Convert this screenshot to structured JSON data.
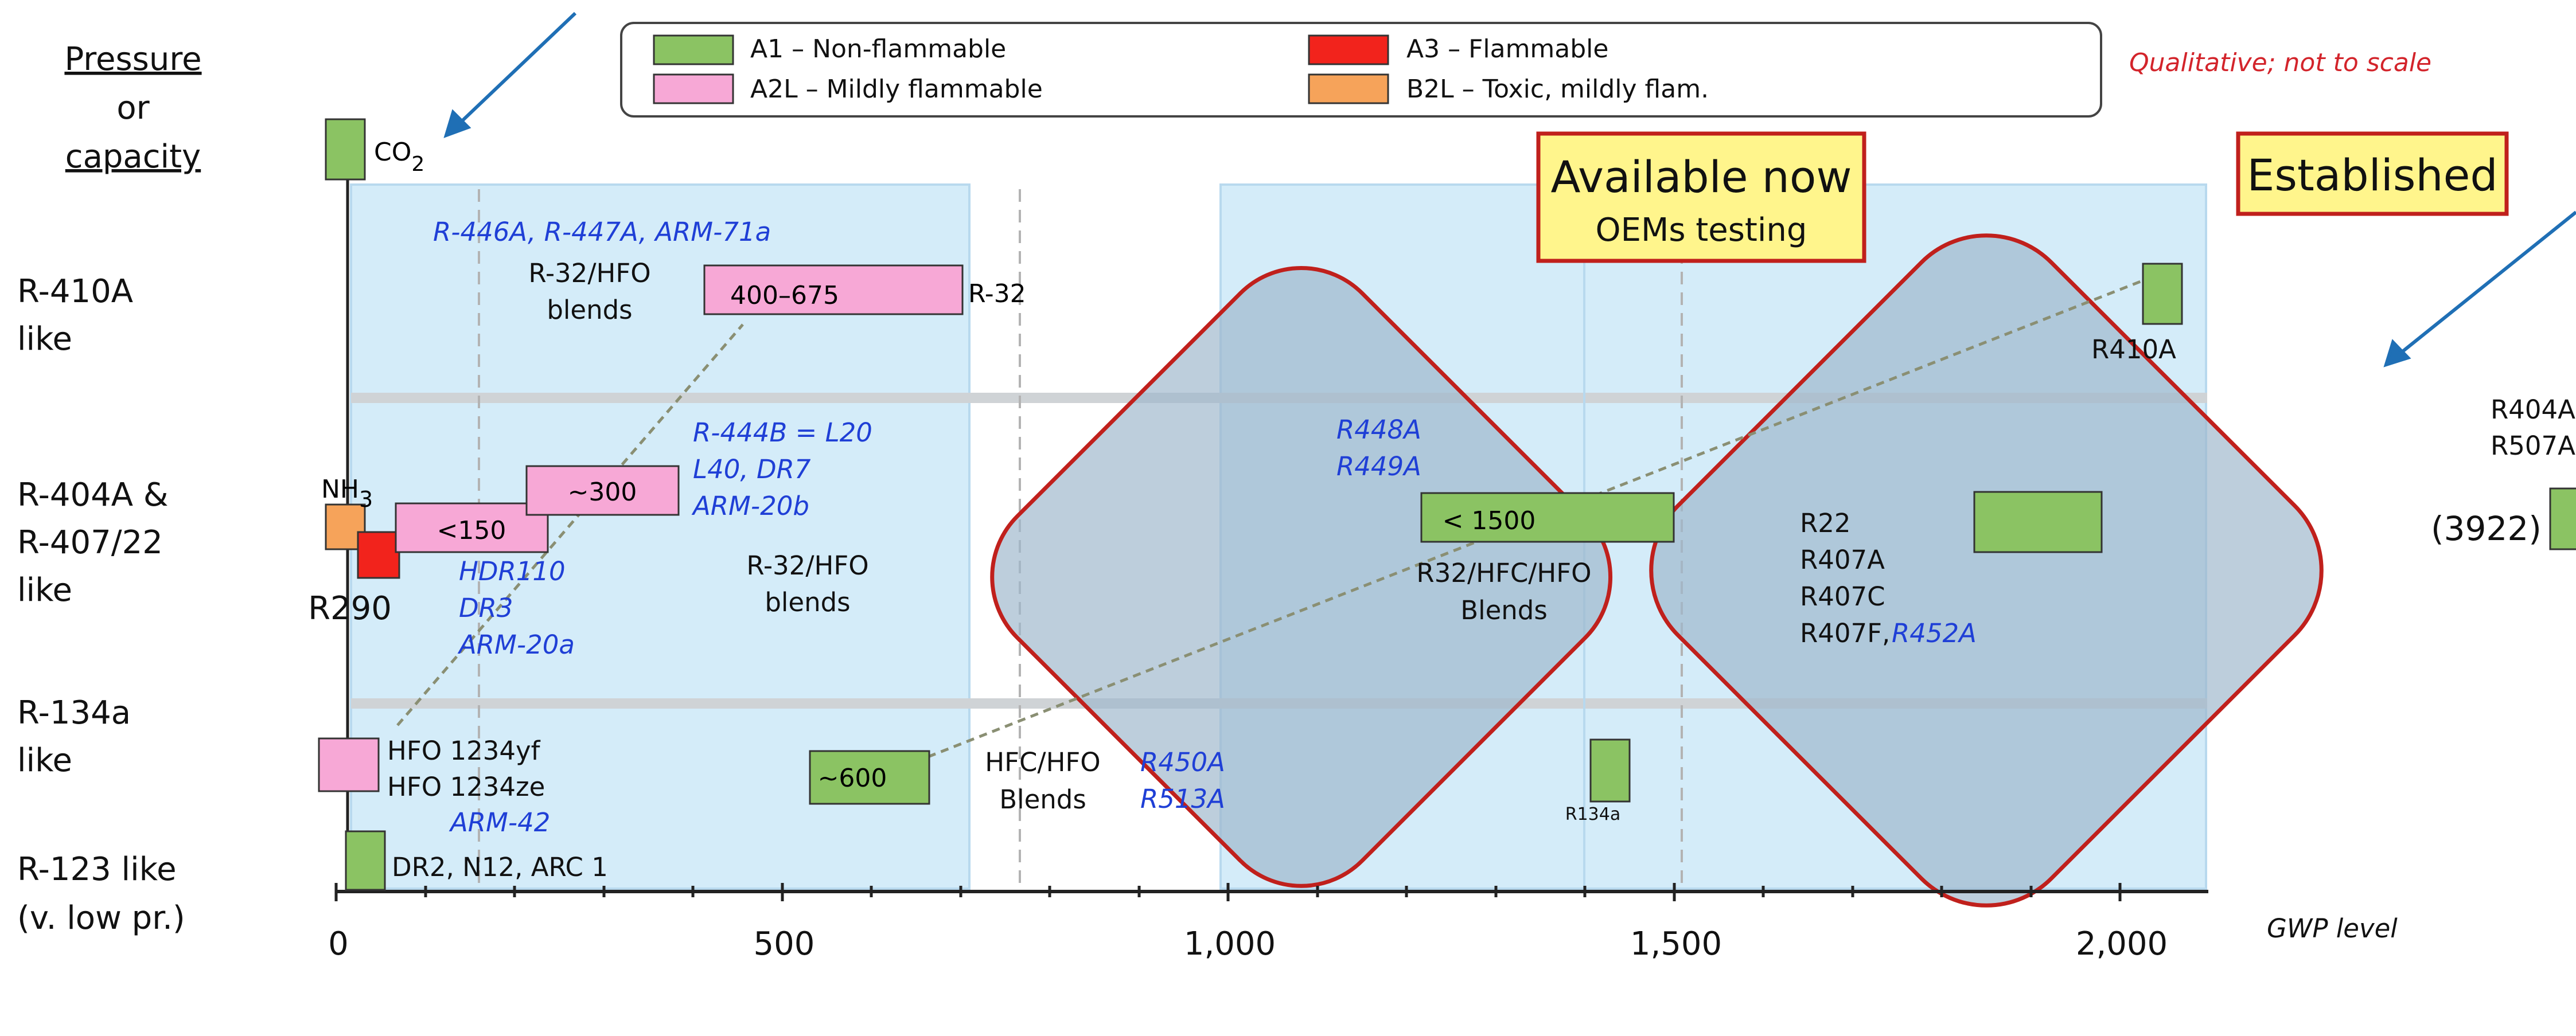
{
  "colors": {
    "a1": "#8bc363",
    "a2l": "#f7a8d6",
    "a3": "#f2231c",
    "b2l": "#f6a35a",
    "zone": "#d4ecf9",
    "diamond": "#9db7cb",
    "diamond_edge": "#c0201c",
    "blue_text": "#1f3fd6",
    "arrow": "#1f6fb5",
    "note": "#d3242b",
    "callout": "#fff58c"
  },
  "y_axis": {
    "title_line1": "Pressure",
    "title_line2": "or",
    "title_line3": "capacity",
    "rows": [
      {
        "line1": "R-410A",
        "line2": "like",
        "line3": ""
      },
      {
        "line1": "R-404A &",
        "line2": "R-407/22",
        "line3": "like"
      },
      {
        "line1": "R-134a",
        "line2": "like",
        "line3": ""
      },
      {
        "line1": "R-123 like",
        "line2": "(v. low pr.)",
        "line3": ""
      }
    ]
  },
  "x_axis": {
    "label": "GWP level",
    "tick_labels": [
      "0",
      "500",
      "1,000",
      "1,500",
      "2,000"
    ]
  },
  "legend": {
    "items": [
      {
        "label": "A1 – Non-flammable",
        "icon": "green-swatch-icon"
      },
      {
        "label": "A2L – Mildly flammable",
        "icon": "pink-swatch-icon"
      },
      {
        "label": "A3 – Flammable",
        "icon": "red-swatch-icon"
      },
      {
        "label": "B2L – Toxic, mildly flam.",
        "icon": "orange-swatch-icon"
      }
    ]
  },
  "note": "Qualitative; not to scale",
  "callouts": {
    "available_line1": "Available now",
    "available_line2": "OEMs testing",
    "established": "Established"
  },
  "bars": {
    "co2": "CO",
    "co2_sub": "2",
    "r32_range": "400–675",
    "r32": "R-32",
    "r404_300": "~300",
    "r404_150": "<150",
    "nh3": "NH",
    "nh3_sub": "3",
    "r290": "R290",
    "lt1500": "< 1500",
    "r134a_600": "~600",
    "r410a": "R410A",
    "r134a_small": "R134a",
    "value_3922": "(3922)"
  },
  "labels": {
    "blends_410_line1": "R-32/HFO",
    "blends_410_line2": "blends",
    "blends_404_line1": "R-32/HFO",
    "blends_404_line2": "blends",
    "r32hfc_line1": "R32/HFC/HFO",
    "r32hfc_line2": "Blends",
    "hfchfo_line1": "HFC/HFO",
    "hfchfo_line2": "Blends",
    "hfo_line1": "HFO 1234yf",
    "hfo_line2": "HFO 1234ze",
    "dr2": "DR2, N12, ARC 1",
    "r22_list": [
      "R22",
      "R407A",
      "R407C",
      "R407F,"
    ],
    "r404a_r507a_line1": "R404A",
    "r404a_r507a_line2": "R507A"
  },
  "blue_labels": {
    "r446": "R-446A, R-447A, ARM-71a",
    "r444b_lines": [
      "R-444B = L20",
      "L40, DR7",
      "ARM-20b"
    ],
    "hdr_lines": [
      "HDR110",
      "DR3",
      "ARM-20a"
    ],
    "r448_lines": [
      "R448A",
      "R449A"
    ],
    "r450_lines": [
      "R450A",
      "R513A"
    ],
    "arm42": "ARM-42",
    "r452a": "R452A"
  }
}
